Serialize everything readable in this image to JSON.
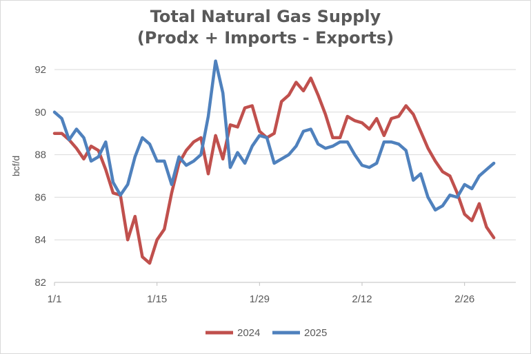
{
  "chart_data": {
    "type": "line",
    "title_line1": "Total Natural Gas Supply",
    "title_line2": "(Prodx + Imports - Exports)",
    "xlabel": "",
    "ylabel": "bcf/d",
    "ylim": [
      82,
      92
    ],
    "yticks": [
      "82",
      "84",
      "86",
      "88",
      "90",
      "92"
    ],
    "xlim": [
      0,
      63
    ],
    "xticks": [
      {
        "label": "1/1",
        "x": 0
      },
      {
        "label": "1/15",
        "x": 14
      },
      {
        "label": "1/29",
        "x": 28
      },
      {
        "label": "2/12",
        "x": 42
      },
      {
        "label": "2/26",
        "x": 56
      }
    ],
    "grid": "horizontal",
    "legend_position": "bottom",
    "series": [
      {
        "name": "2024",
        "color": "#c0504d",
        "x": [
          0,
          1,
          2,
          3,
          4,
          5,
          6,
          7,
          8,
          9,
          10,
          11,
          12,
          13,
          14,
          15,
          16,
          17,
          18,
          19,
          20,
          21,
          22,
          23,
          24,
          25,
          26,
          27,
          28,
          29,
          30,
          31,
          32,
          33,
          34,
          35,
          36,
          37,
          38,
          39,
          40,
          41,
          42,
          43,
          44,
          45,
          46,
          47,
          48,
          49,
          50,
          51,
          52,
          53,
          54,
          55,
          56,
          57,
          58,
          59,
          60
        ],
        "values": [
          89.0,
          89.0,
          88.7,
          88.3,
          87.8,
          88.4,
          88.2,
          87.3,
          86.2,
          86.1,
          84.0,
          85.1,
          83.2,
          82.9,
          84.0,
          84.5,
          86.2,
          87.6,
          88.2,
          88.6,
          88.8,
          87.1,
          88.9,
          87.8,
          89.4,
          89.3,
          90.2,
          90.3,
          89.1,
          88.8,
          89.0,
          90.5,
          90.8,
          91.4,
          91.0,
          91.6,
          90.8,
          89.9,
          88.8,
          88.8,
          89.8,
          89.6,
          89.5,
          89.2,
          89.7,
          88.9,
          89.7,
          89.8,
          90.3,
          89.9,
          89.1,
          88.3,
          87.7,
          87.2,
          87.0,
          86.2,
          85.2,
          84.9,
          85.7,
          84.6,
          84.1
        ]
      },
      {
        "name": "2025",
        "color": "#4f81bd",
        "x": [
          0,
          1,
          2,
          3,
          4,
          5,
          6,
          7,
          8,
          9,
          10,
          11,
          12,
          13,
          14,
          15,
          16,
          17,
          18,
          19,
          20,
          21,
          22,
          23,
          24,
          25,
          26,
          27,
          28,
          29,
          30,
          31,
          32,
          33,
          34,
          35,
          36,
          37,
          38,
          39,
          40,
          41,
          42,
          43,
          44,
          45,
          46,
          47,
          48,
          49,
          50,
          51,
          52,
          53,
          54,
          55,
          56,
          57,
          58,
          59,
          60
        ],
        "values": [
          90.0,
          89.7,
          88.7,
          89.2,
          88.8,
          87.7,
          87.9,
          88.6,
          86.7,
          86.1,
          86.6,
          87.9,
          88.8,
          88.5,
          87.7,
          87.7,
          86.6,
          87.9,
          87.5,
          87.7,
          88.0,
          89.8,
          92.4,
          90.9,
          87.4,
          88.1,
          87.6,
          88.4,
          88.9,
          88.8,
          87.6,
          87.8,
          88.0,
          88.4,
          89.1,
          89.2,
          88.5,
          88.3,
          88.4,
          88.6,
          88.6,
          88.0,
          87.5,
          87.4,
          87.6,
          88.6,
          88.6,
          88.5,
          88.2,
          86.8,
          87.1,
          86.0,
          85.4,
          85.6,
          86.1,
          86.0,
          86.6,
          86.4,
          87.0,
          87.3,
          87.6
        ]
      }
    ]
  }
}
